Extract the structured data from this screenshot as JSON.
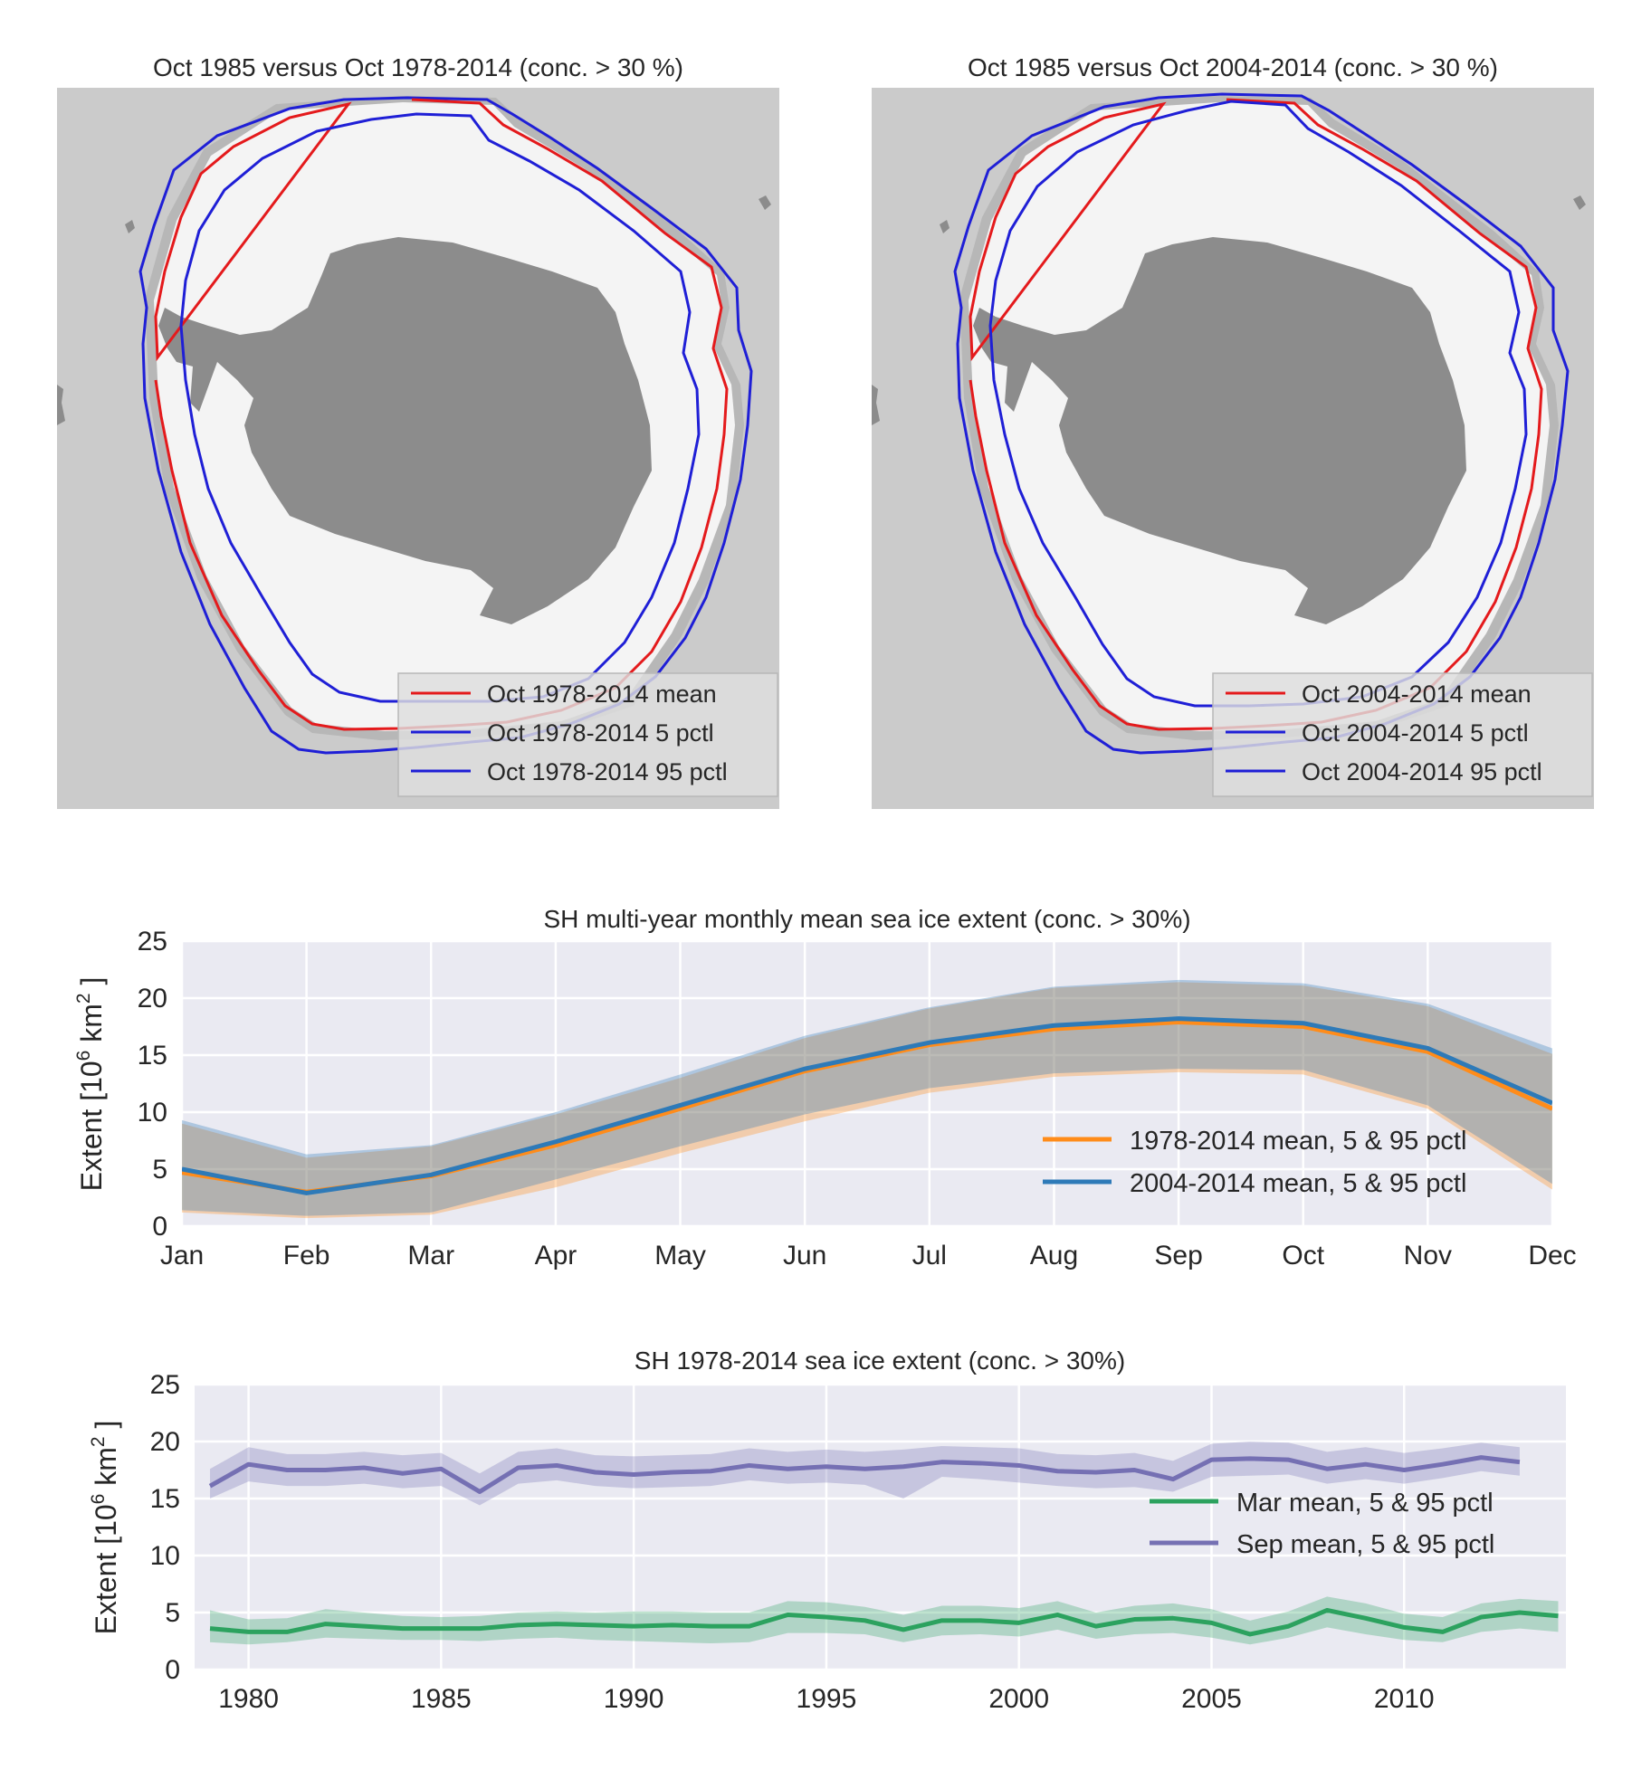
{
  "chart_data": [
    {
      "type": "map",
      "title": "Oct 1985 versus Oct 1978-2014 (conc. > 30 %)",
      "legend": [
        "Oct 1978-2014 mean",
        "Oct 1978-2014 5 pctl",
        "Oct 1978-2014 95 pctl"
      ],
      "legend_colors": [
        "#e41a1c",
        "#1f1fd6",
        "#1f1fd6"
      ],
      "legend_position": "lower-right"
    },
    {
      "type": "map",
      "title": "Oct 1985 versus Oct 2004-2014 (conc. > 30 %)",
      "legend": [
        "Oct 2004-2014 mean",
        "Oct 2004-2014 5 pctl",
        "Oct 2004-2014 95 pctl"
      ],
      "legend_colors": [
        "#e41a1c",
        "#1f1fd6",
        "#1f1fd6"
      ],
      "legend_position": "lower-right"
    },
    {
      "type": "line",
      "title": "SH multi-year monthly mean sea ice extent (conc. > 30%)",
      "ylabel": "Extent [10^6 km^2 ]",
      "ylabel_parts": {
        "pre": "Extent [10",
        "exp1": "6",
        "mid": " km",
        "exp2": "2",
        "post": " ]"
      },
      "categories": [
        "Jan",
        "Feb",
        "Mar",
        "Apr",
        "May",
        "Jun",
        "Jul",
        "Aug",
        "Sep",
        "Oct",
        "Nov",
        "Dec"
      ],
      "ylim": [
        0,
        25
      ],
      "yticks": [
        0,
        5,
        10,
        15,
        20,
        25
      ],
      "grid": true,
      "legend_position": "lower-right",
      "series": [
        {
          "name": "1978-2014 mean, 5 & 95 pctl",
          "color": "#ff8c1a",
          "mean": [
            4.7,
            3.0,
            4.4,
            7.1,
            10.3,
            13.6,
            15.9,
            17.3,
            17.9,
            17.5,
            15.3,
            10.3
          ],
          "p5": [
            1.2,
            0.7,
            1.0,
            3.4,
            6.4,
            9.2,
            11.7,
            13.1,
            13.5,
            13.3,
            10.3,
            3.2
          ],
          "p95": [
            9.0,
            6.0,
            7.0,
            9.8,
            13.0,
            16.5,
            19.1,
            20.9,
            21.4,
            21.1,
            19.3,
            15.1
          ]
        },
        {
          "name": "2004-2014 mean, 5 & 95 pctl",
          "color": "#2e7ab8",
          "mean": [
            5.0,
            2.9,
            4.5,
            7.4,
            10.6,
            13.8,
            16.1,
            17.6,
            18.2,
            17.8,
            15.6,
            10.8
          ],
          "p5": [
            1.4,
            0.9,
            1.2,
            4.1,
            7.0,
            9.8,
            12.1,
            13.4,
            13.8,
            13.7,
            10.6,
            3.7
          ],
          "p95": [
            9.3,
            6.3,
            7.1,
            10.0,
            13.3,
            16.7,
            19.2,
            21.0,
            21.6,
            21.3,
            19.5,
            15.6
          ]
        }
      ]
    },
    {
      "type": "line",
      "title": "SH 1978-2014 sea ice extent (conc. > 30%)",
      "ylabel": "Extent [10^6 km^2 ]",
      "ylabel_parts": {
        "pre": "Extent [10",
        "exp1": "6",
        "mid": " km",
        "exp2": "2",
        "post": " ]"
      },
      "xlim": [
        1978.6,
        2014.2
      ],
      "xticks": [
        1980,
        1985,
        1990,
        1995,
        2000,
        2005,
        2010
      ],
      "ylim": [
        0,
        25
      ],
      "yticks": [
        0,
        5,
        10,
        15,
        20,
        25
      ],
      "grid": true,
      "legend_position": "center-right",
      "series": [
        {
          "name": "Mar mean, 5 & 95 pctl",
          "color": "#2ca25f",
          "x": [
            1979,
            1980,
            1981,
            1982,
            1983,
            1984,
            1985,
            1986,
            1987,
            1988,
            1989,
            1990,
            1991,
            1992,
            1993,
            1994,
            1995,
            1996,
            1997,
            1998,
            1999,
            2000,
            2001,
            2002,
            2003,
            2004,
            2005,
            2006,
            2007,
            2008,
            2009,
            2010,
            2011,
            2012,
            2013,
            2014
          ],
          "mean": [
            3.6,
            3.3,
            3.3,
            4.0,
            3.8,
            3.6,
            3.6,
            3.6,
            3.9,
            4.0,
            3.9,
            3.8,
            3.9,
            3.8,
            3.8,
            4.8,
            4.6,
            4.3,
            3.5,
            4.3,
            4.3,
            4.1,
            4.8,
            3.8,
            4.4,
            4.5,
            4.1,
            3.1,
            3.8,
            5.2,
            4.5,
            3.7,
            3.3,
            4.6,
            5.0,
            4.7
          ],
          "p5": [
            2.4,
            2.2,
            2.4,
            2.8,
            2.7,
            2.6,
            2.6,
            2.5,
            2.7,
            2.8,
            2.6,
            2.5,
            2.4,
            2.3,
            2.4,
            3.2,
            3.2,
            3.1,
            2.4,
            3.0,
            3.1,
            2.9,
            3.5,
            2.7,
            3.1,
            3.2,
            2.8,
            2.2,
            2.8,
            3.7,
            3.1,
            2.6,
            2.4,
            3.3,
            3.6,
            3.3
          ],
          "p95": [
            5.2,
            4.4,
            4.5,
            5.3,
            5.0,
            4.7,
            4.6,
            4.7,
            5.0,
            5.1,
            5.0,
            5.1,
            5.1,
            5.0,
            5.0,
            6.0,
            5.9,
            5.5,
            4.8,
            5.6,
            5.6,
            5.4,
            6.0,
            5.0,
            5.6,
            5.8,
            5.3,
            4.3,
            5.1,
            6.4,
            5.8,
            4.9,
            4.6,
            5.8,
            6.2,
            6.0
          ]
        },
        {
          "name": "Sep mean, 5 & 95 pctl",
          "color": "#7570b3",
          "x": [
            1979,
            1980,
            1981,
            1982,
            1983,
            1984,
            1985,
            1986,
            1987,
            1988,
            1989,
            1990,
            1991,
            1992,
            1993,
            1994,
            1995,
            1996,
            1997,
            1998,
            1999,
            2000,
            2001,
            2002,
            2003,
            2004,
            2005,
            2006,
            2007,
            2008,
            2009,
            2010,
            2011,
            2012,
            2013
          ],
          "mean": [
            16.1,
            18.0,
            17.5,
            17.5,
            17.7,
            17.2,
            17.6,
            15.6,
            17.7,
            17.9,
            17.3,
            17.1,
            17.3,
            17.4,
            17.9,
            17.6,
            17.8,
            17.6,
            17.8,
            18.2,
            18.1,
            17.9,
            17.4,
            17.3,
            17.5,
            16.7,
            18.4,
            18.5,
            18.4,
            17.6,
            18.0,
            17.5,
            18.0,
            18.6,
            18.2
          ],
          "p5": [
            15.0,
            16.5,
            16.1,
            16.1,
            16.3,
            15.9,
            16.1,
            14.4,
            16.3,
            16.6,
            16.1,
            15.9,
            16.0,
            16.1,
            16.6,
            16.3,
            16.4,
            16.2,
            15.0,
            16.9,
            16.7,
            16.4,
            16.1,
            15.9,
            16.0,
            15.6,
            16.9,
            17.0,
            17.1,
            16.3,
            16.7,
            16.3,
            16.8,
            17.4,
            17.0
          ],
          "p95": [
            17.6,
            19.5,
            18.9,
            18.9,
            19.1,
            18.8,
            19.0,
            17.2,
            19.1,
            19.4,
            18.8,
            18.7,
            18.8,
            18.9,
            19.4,
            19.1,
            19.3,
            19.1,
            19.3,
            19.6,
            19.5,
            19.4,
            18.9,
            18.8,
            19.0,
            18.3,
            19.8,
            20.0,
            19.9,
            19.1,
            19.5,
            19.0,
            19.4,
            19.9,
            19.5
          ]
        }
      ]
    }
  ]
}
